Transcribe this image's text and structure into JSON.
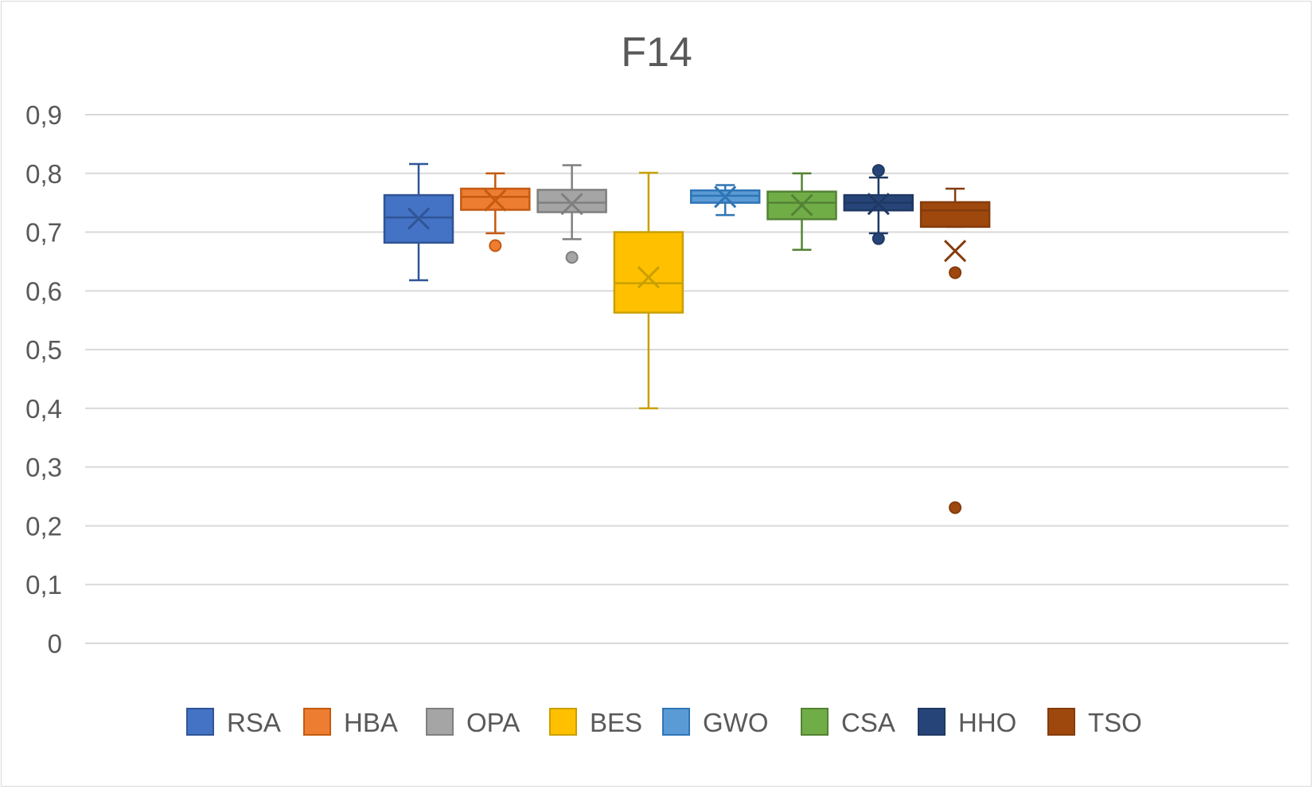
{
  "chart_data": {
    "type": "box",
    "title": "F14",
    "xlabel": "",
    "ylabel": "",
    "ylim": [
      0,
      0.9
    ],
    "y_ticks": [
      "0",
      "0,1",
      "0,2",
      "0,3",
      "0,4",
      "0,5",
      "0,6",
      "0,7",
      "0,8",
      "0,9"
    ],
    "y_tick_values": [
      0,
      0.1,
      0.2,
      0.3,
      0.4,
      0.5,
      0.6,
      0.7,
      0.8,
      0.9
    ],
    "grid": true,
    "legend_position": "bottom",
    "series": [
      {
        "name": "RSA",
        "color": "#4472C4",
        "stroke": "#2F5597",
        "whisker_low": 0.618,
        "q1": 0.682,
        "median": 0.725,
        "q3": 0.763,
        "whisker_high": 0.816,
        "mean": 0.723,
        "outliers": []
      },
      {
        "name": "HBA",
        "color": "#ED7D31",
        "stroke": "#C55A11",
        "whisker_low": 0.698,
        "q1": 0.738,
        "median": 0.76,
        "q3": 0.774,
        "whisker_high": 0.8,
        "mean": 0.754,
        "outliers": [
          0.677
        ]
      },
      {
        "name": "OPA",
        "color": "#A5A5A5",
        "stroke": "#7F7F7F",
        "whisker_low": 0.688,
        "q1": 0.734,
        "median": 0.75,
        "q3": 0.772,
        "whisker_high": 0.814,
        "mean": 0.748,
        "outliers": [
          0.657
        ]
      },
      {
        "name": "BES",
        "color": "#FFC000",
        "stroke": "#C9A000",
        "whisker_low": 0.4,
        "q1": 0.563,
        "median": 0.613,
        "q3": 0.7,
        "whisker_high": 0.801,
        "mean": 0.623,
        "outliers": []
      },
      {
        "name": "GWO",
        "color": "#5B9BD5",
        "stroke": "#2E75B6",
        "whisker_low": 0.729,
        "q1": 0.75,
        "median": 0.762,
        "q3": 0.771,
        "whisker_high": 0.78,
        "mean": 0.76,
        "outliers": []
      },
      {
        "name": "CSA",
        "color": "#70AD47",
        "stroke": "#548235",
        "whisker_low": 0.67,
        "q1": 0.722,
        "median": 0.75,
        "q3": 0.769,
        "whisker_high": 0.8,
        "mean": 0.746,
        "outliers": []
      },
      {
        "name": "HHO",
        "color": "#264478",
        "stroke": "#1F3864",
        "whisker_low": 0.698,
        "q1": 0.737,
        "median": 0.75,
        "q3": 0.763,
        "whisker_high": 0.793,
        "mean": 0.748,
        "outliers": [
          0.805,
          0.689
        ]
      },
      {
        "name": "TSO",
        "color": "#9E480E",
        "stroke": "#843C0C",
        "whisker_low": 0.709,
        "q1": 0.709,
        "median": 0.737,
        "q3": 0.751,
        "whisker_high": 0.774,
        "mean": 0.668,
        "outliers": [
          0.631,
          0.231
        ]
      }
    ]
  }
}
